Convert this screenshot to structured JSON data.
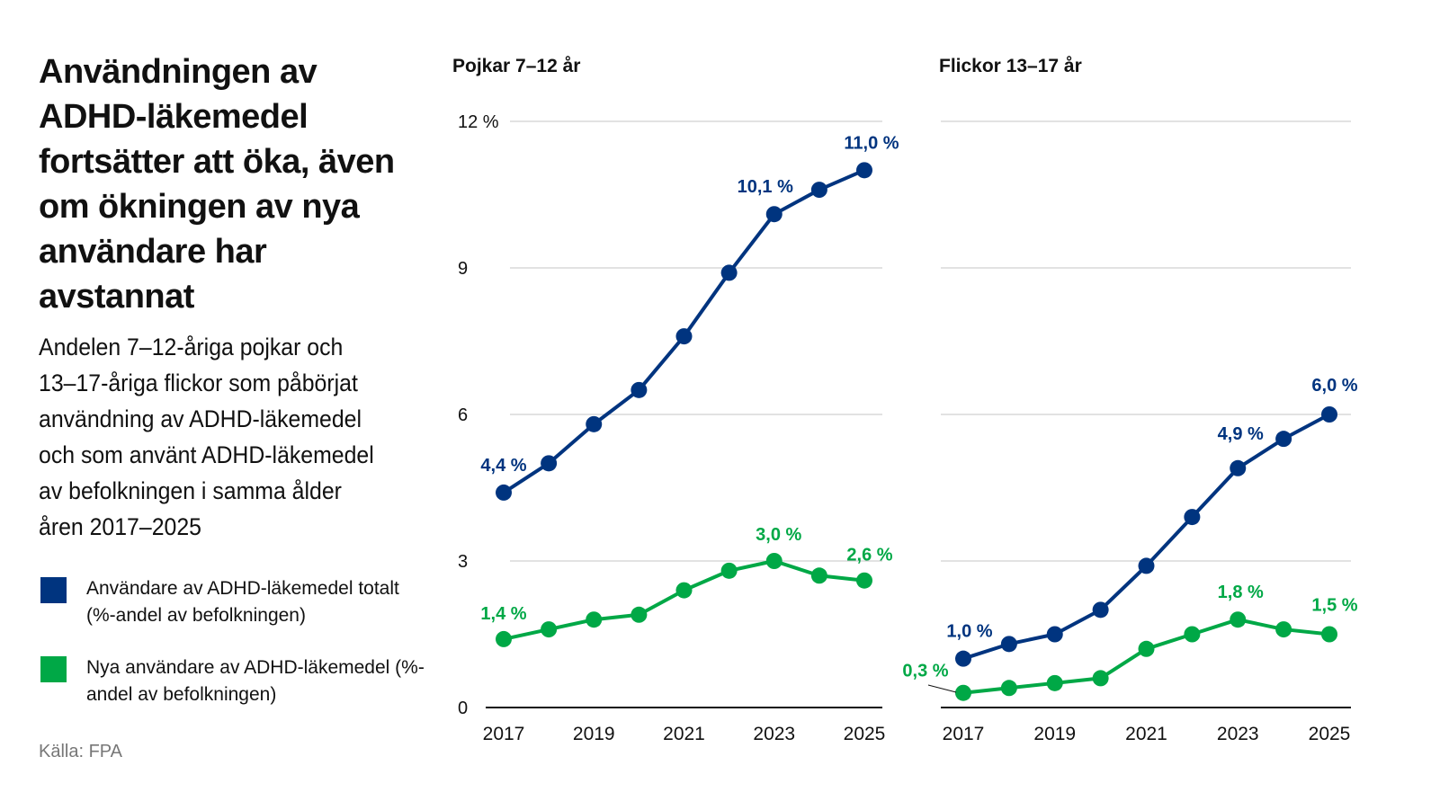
{
  "title": "Användningen av ADHD-läkemedel fortsätter att öka, även om ökningen av nya användare har avstannat",
  "subtitle": "Andelen 7–12-åriga pojkar och 13–17-åriga flickor som påbörjat användning av ADHD-läkemedel och som använt ADHD-läkemedel av befolkningen i samma ålder åren 2017–2025",
  "legend": [
    {
      "label": "Användare av ADHD-läkemedel totalt (%-andel av befolkningen)",
      "color": "#00347f"
    },
    {
      "label": "Nya användare av ADHD-läkemedel (%-andel av befolkningen)",
      "color": "#00a846"
    }
  ],
  "source": "Källa: FPA",
  "chart_data": [
    {
      "type": "line",
      "title": "Pojkar 7–12 år",
      "x": [
        2017,
        2018,
        2019,
        2020,
        2021,
        2022,
        2023,
        2024,
        2025
      ],
      "x_tick_labels": [
        "2017",
        "2019",
        "2021",
        "2023",
        "2025"
      ],
      "y_tick_labels": [
        "0",
        "3",
        "6",
        "9",
        "12 %"
      ],
      "ylim": [
        0,
        12
      ],
      "grid": true,
      "series": [
        {
          "name": "Användare av ADHD-läkemedel totalt (%-andel av befolkningen)",
          "color": "#00347f",
          "values": [
            4.4,
            5.0,
            5.8,
            6.5,
            7.6,
            8.9,
            10.1,
            10.6,
            11.0
          ],
          "labels": {
            "0": "4,4 %",
            "6": "10,1 %",
            "8": "11,0 %"
          }
        },
        {
          "name": "Nya användare av ADHD-läkemedel (%-andel av befolkningen)",
          "color": "#00a846",
          "values": [
            1.4,
            1.6,
            1.8,
            1.9,
            2.4,
            2.8,
            3.0,
            2.7,
            2.6
          ],
          "labels": {
            "0": "1,4 %",
            "6": "3,0 %",
            "8": "2,6 %"
          }
        }
      ]
    },
    {
      "type": "line",
      "title": "Flickor 13–17 år",
      "x": [
        2017,
        2018,
        2019,
        2020,
        2021,
        2022,
        2023,
        2024,
        2025
      ],
      "x_tick_labels": [
        "2017",
        "2019",
        "2021",
        "2023",
        "2025"
      ],
      "ylim": [
        0,
        12
      ],
      "grid": true,
      "series": [
        {
          "name": "Användare av ADHD-läkemedel totalt (%-andel av befolkningen)",
          "color": "#00347f",
          "values": [
            1.0,
            1.3,
            1.5,
            2.0,
            2.9,
            3.9,
            4.9,
            5.5,
            6.0
          ],
          "labels": {
            "0": "1,0 %",
            "6": "4,9 %",
            "8": "6,0 %"
          }
        },
        {
          "name": "Nya användare av ADHD-läkemedel (%-andel av befolkningen)",
          "color": "#00a846",
          "values": [
            0.3,
            0.4,
            0.5,
            0.6,
            1.2,
            1.5,
            1.8,
            1.6,
            1.5
          ],
          "labels": {
            "0": "0,3 %",
            "6": "1,8 %",
            "8": "1,5 %"
          }
        }
      ]
    }
  ]
}
